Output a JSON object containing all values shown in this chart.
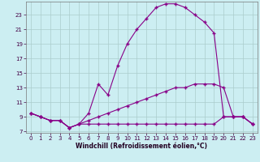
{
  "xlabel": "Windchill (Refroidissement éolien,°C)",
  "bg_color": "#cceef2",
  "line_color": "#880088",
  "grid_color": "#aacccc",
  "xlim": [
    -0.5,
    23.5
  ],
  "ylim": [
    6.8,
    24.8
  ],
  "xticks": [
    0,
    1,
    2,
    3,
    4,
    5,
    6,
    7,
    8,
    9,
    10,
    11,
    12,
    13,
    14,
    15,
    16,
    17,
    18,
    19,
    20,
    21,
    22,
    23
  ],
  "yticks": [
    7,
    9,
    11,
    13,
    15,
    17,
    19,
    21,
    23
  ],
  "line1_x": [
    0,
    1,
    2,
    3,
    4,
    5,
    6,
    7,
    8,
    9,
    10,
    11,
    12,
    13,
    14,
    15,
    16,
    17,
    18,
    19,
    20,
    21,
    22,
    23
  ],
  "line1_y": [
    9.5,
    9.0,
    8.5,
    8.5,
    7.5,
    8.0,
    8.0,
    8.0,
    8.0,
    8.0,
    8.0,
    8.0,
    8.0,
    8.0,
    8.0,
    8.0,
    8.0,
    8.0,
    8.0,
    8.0,
    9.0,
    9.0,
    9.0,
    8.0
  ],
  "line2_x": [
    0,
    1,
    2,
    3,
    4,
    5,
    6,
    7,
    8,
    9,
    10,
    11,
    12,
    13,
    14,
    15,
    16,
    17,
    18,
    19,
    20,
    21,
    22,
    23
  ],
  "line2_y": [
    9.5,
    9.0,
    8.5,
    8.5,
    7.5,
    8.0,
    8.5,
    9.0,
    9.5,
    10.0,
    10.5,
    11.0,
    11.5,
    12.0,
    12.5,
    13.0,
    13.0,
    13.5,
    13.5,
    13.5,
    13.0,
    9.0,
    9.0,
    8.0
  ],
  "line3_x": [
    0,
    1,
    2,
    3,
    4,
    5,
    6,
    7,
    8,
    9,
    10,
    11,
    12,
    13,
    14,
    15,
    16,
    17,
    18,
    19,
    20,
    21,
    22,
    23
  ],
  "line3_y": [
    9.5,
    9.0,
    8.5,
    8.5,
    7.5,
    8.0,
    9.5,
    13.5,
    12.0,
    16.0,
    19.0,
    21.0,
    22.5,
    24.0,
    24.5,
    24.5,
    24.0,
    23.0,
    22.0,
    20.5,
    9.0,
    9.0,
    9.0,
    8.0
  ]
}
